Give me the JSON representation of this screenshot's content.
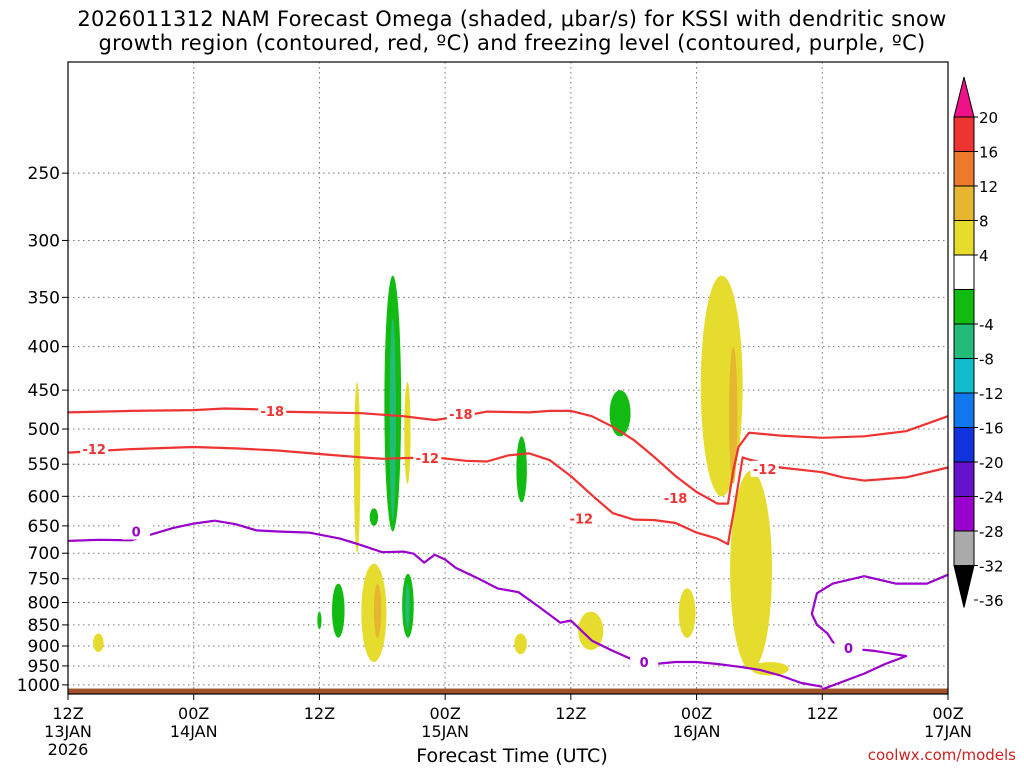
{
  "title_line1": "2026011312 NAM Forecast Omega (shaded, μbar/s) for KSSI with dendritic snow",
  "title_line2": "growth region (contoured, red, ºC) and freezing level (contoured, purple, ºC)",
  "credit": "coolwx.com/models",
  "colors": {
    "red_contour": "#ee3333",
    "purple_contour": "#9900cc",
    "ground": "#a0522d"
  },
  "chart_data": {
    "type": "heatmap",
    "title": "2026011312 NAM Forecast Omega (shaded, μbar/s) for KSSI with dendritic snow growth region (contoured, red, ºC) and freezing level (contoured, purple, ºC)",
    "xlabel": "Forecast Time (UTC)",
    "ylabel": "",
    "x_range_hours": [
      0,
      84
    ],
    "y_axis": {
      "scale": "log-pressure",
      "units": "hPa",
      "range": [
        1025,
        185
      ],
      "ticks": [
        250,
        300,
        350,
        400,
        450,
        500,
        550,
        600,
        650,
        700,
        750,
        800,
        850,
        900,
        950,
        1000
      ]
    },
    "x_ticks": [
      {
        "h": 0,
        "line1": "12Z",
        "line2": "13JAN",
        "line3": "2026"
      },
      {
        "h": 12,
        "line1": "00Z",
        "line2": "14JAN",
        "line3": ""
      },
      {
        "h": 24,
        "line1": "12Z",
        "line2": "",
        "line3": ""
      },
      {
        "h": 36,
        "line1": "00Z",
        "line2": "15JAN",
        "line3": ""
      },
      {
        "h": 48,
        "line1": "12Z",
        "line2": "",
        "line3": ""
      },
      {
        "h": 60,
        "line1": "00Z",
        "line2": "16JAN",
        "line3": ""
      },
      {
        "h": 72,
        "line1": "12Z",
        "line2": "",
        "line3": ""
      },
      {
        "h": 84,
        "line1": "00Z",
        "line2": "17JAN",
        "line3": ""
      }
    ],
    "colorbar": {
      "labels": [
        "20",
        "16",
        "12",
        "8",
        "4",
        "-4",
        "-8",
        "-12",
        "-16",
        "-20",
        "-24",
        "-28",
        "-32",
        "-36"
      ],
      "bins": [
        {
          "v": 18,
          "color": "#ee3333"
        },
        {
          "v": 14,
          "color": "#ec7a2a"
        },
        {
          "v": 10,
          "color": "#e6b630"
        },
        {
          "v": 6,
          "color": "#e5dc2e"
        },
        {
          "v": 0,
          "color": "#ffffff"
        },
        {
          "v": -6,
          "color": "#11bb11"
        },
        {
          "v": -10,
          "color": "#22bb77"
        },
        {
          "v": -14,
          "color": "#11bbcc"
        },
        {
          "v": -18,
          "color": "#1177ee"
        },
        {
          "v": -22,
          "color": "#1133dd"
        },
        {
          "v": -26,
          "color": "#6611cc"
        },
        {
          "v": -30,
          "color": "#9900cc"
        },
        {
          "v": -34,
          "color": "#aaaaaa"
        }
      ],
      "top_arrow_color": "#ee1188",
      "bottom_arrow_color": "#000000"
    },
    "contours": [
      {
        "name": "-18",
        "color": "#ee3333",
        "label": "-18",
        "pts": [
          [
            0,
            478
          ],
          [
            6,
            476
          ],
          [
            12,
            475
          ],
          [
            15,
            473
          ],
          [
            18,
            474
          ],
          [
            20,
            477
          ],
          [
            24,
            478
          ],
          [
            28,
            479
          ],
          [
            32,
            483
          ],
          [
            35,
            488
          ],
          [
            36.5,
            485
          ],
          [
            38,
            482
          ],
          [
            40,
            477
          ],
          [
            44,
            478
          ],
          [
            46,
            476
          ],
          [
            48,
            476
          ],
          [
            50,
            483
          ],
          [
            52,
            497
          ],
          [
            54,
            515
          ],
          [
            56,
            540
          ],
          [
            58,
            568
          ],
          [
            60,
            593
          ],
          [
            62,
            612
          ],
          [
            63,
            612
          ],
          [
            63.5,
            560
          ],
          [
            64,
            525
          ],
          [
            65,
            505
          ],
          [
            68,
            509
          ],
          [
            72,
            512
          ],
          [
            76,
            510
          ],
          [
            80,
            503
          ],
          [
            84,
            483
          ]
        ],
        "labels": [
          [
            19.5,
            476
          ],
          [
            37.5,
            480
          ],
          [
            58,
            603
          ]
        ]
      },
      {
        "name": "-12",
        "color": "#ee3333",
        "label": "-12",
        "pts": [
          [
            0,
            533
          ],
          [
            6,
            528
          ],
          [
            12,
            525
          ],
          [
            16,
            527
          ],
          [
            20,
            530
          ],
          [
            24,
            535
          ],
          [
            28,
            540
          ],
          [
            30,
            542
          ],
          [
            32,
            541
          ],
          [
            35,
            540
          ],
          [
            38,
            545
          ],
          [
            40,
            546
          ],
          [
            42,
            537
          ],
          [
            44,
            534
          ],
          [
            46,
            544
          ],
          [
            48,
            568
          ],
          [
            50,
            598
          ],
          [
            52,
            628
          ],
          [
            54,
            639
          ],
          [
            56,
            640
          ],
          [
            58,
            645
          ],
          [
            60,
            662
          ],
          [
            62,
            673
          ],
          [
            63,
            683
          ],
          [
            63.2,
            660
          ],
          [
            63.6,
            620
          ],
          [
            64,
            578
          ],
          [
            64.4,
            540
          ],
          [
            65,
            543
          ],
          [
            68,
            555
          ],
          [
            72,
            562
          ],
          [
            74,
            570
          ],
          [
            76,
            575
          ],
          [
            80,
            570
          ],
          [
            84,
            555
          ]
        ],
        "labels": [
          [
            2.5,
            528
          ],
          [
            34.3,
            541
          ],
          [
            49,
            637
          ],
          [
            66.5,
            557
          ]
        ]
      },
      {
        "name": "0",
        "color": "#9900cc",
        "label": "0",
        "pts": [
          [
            0,
            677
          ],
          [
            3,
            675
          ],
          [
            6,
            676
          ],
          [
            8,
            665
          ],
          [
            10,
            654
          ],
          [
            12,
            646
          ],
          [
            14,
            641
          ],
          [
            16,
            647
          ],
          [
            18,
            658
          ],
          [
            20,
            660
          ],
          [
            23,
            662
          ],
          [
            26,
            673
          ],
          [
            28,
            685
          ],
          [
            30,
            698
          ],
          [
            32,
            697
          ],
          [
            33,
            701
          ],
          [
            34,
            718
          ],
          [
            35,
            703
          ],
          [
            36,
            712
          ],
          [
            37,
            728
          ],
          [
            39,
            748
          ],
          [
            41,
            770
          ],
          [
            43,
            778
          ],
          [
            45,
            810
          ],
          [
            47,
            845
          ],
          [
            48,
            840
          ],
          [
            50,
            887
          ],
          [
            52,
            912
          ],
          [
            54,
            935
          ],
          [
            56,
            945
          ],
          [
            58,
            940
          ],
          [
            60,
            940
          ],
          [
            62,
            945
          ],
          [
            64,
            952
          ],
          [
            66,
            960
          ],
          [
            68,
            975
          ],
          [
            70,
            995
          ],
          [
            72,
            1005
          ]
        ],
        "labels": [
          [
            6.5,
            660
          ],
          [
            55,
            940
          ]
        ]
      },
      {
        "name": "0b",
        "color": "#9900cc",
        "label": "",
        "pts": [
          [
            72,
            1012
          ],
          [
            76,
            970
          ],
          [
            78,
            945
          ],
          [
            80,
            925
          ],
          [
            77,
            912
          ],
          [
            74,
            905
          ],
          [
            73,
            890
          ],
          [
            72.5,
            870
          ],
          [
            71.5,
            850
          ],
          [
            71,
            825
          ],
          [
            71.5,
            780
          ],
          [
            73,
            760
          ],
          [
            76,
            745
          ],
          [
            79,
            760
          ],
          [
            82,
            760
          ],
          [
            84,
            742
          ]
        ],
        "labels": [
          [
            74.5,
            905
          ]
        ]
      }
    ],
    "omega_areas": [
      {
        "v": -6,
        "hours": [
          28.8,
          29.6
        ],
        "p_top": 620,
        "p_bottom": 650
      },
      {
        "v": -6,
        "hours": [
          30.2,
          31.8
        ],
        "p_top": 330,
        "p_bottom": 660
      },
      {
        "v": -10,
        "hours": [
          30.7,
          31.3
        ],
        "p_top": 370,
        "p_bottom": 640
      },
      {
        "v": -6,
        "hours": [
          25.2,
          26.4
        ],
        "p_top": 760,
        "p_bottom": 880
      },
      {
        "v": -6,
        "hours": [
          23.8,
          24.2
        ],
        "p_top": 820,
        "p_bottom": 860
      },
      {
        "v": -6,
        "hours": [
          31.9,
          33.0
        ],
        "p_top": 740,
        "p_bottom": 880
      },
      {
        "v": -10,
        "hours": [
          32.2,
          32.6
        ],
        "p_top": 760,
        "p_bottom": 860
      },
      {
        "v": -6,
        "hours": [
          42.8,
          43.8
        ],
        "p_top": 510,
        "p_bottom": 610
      },
      {
        "v": -6,
        "hours": [
          51.7,
          53.7
        ],
        "p_top": 450,
        "p_bottom": 510
      },
      {
        "v": 6,
        "hours": [
          27.3,
          27.9
        ],
        "p_top": 440,
        "p_bottom": 700
      },
      {
        "v": 6,
        "hours": [
          32.1,
          32.7
        ],
        "p_top": 440,
        "p_bottom": 580
      },
      {
        "v": 6,
        "hours": [
          28.0,
          30.4
        ],
        "p_top": 720,
        "p_bottom": 940
      },
      {
        "v": 10,
        "hours": [
          29.2,
          29.9
        ],
        "p_top": 760,
        "p_bottom": 880
      },
      {
        "v": 6,
        "hours": [
          2.4,
          3.4
        ],
        "p_top": 870,
        "p_bottom": 915
      },
      {
        "v": 6,
        "hours": [
          42.6,
          43.8
        ],
        "p_top": 870,
        "p_bottom": 920
      },
      {
        "v": 6,
        "hours": [
          48.7,
          51.1
        ],
        "p_top": 820,
        "p_bottom": 910
      },
      {
        "v": 6,
        "hours": [
          58.3,
          59.9
        ],
        "p_top": 770,
        "p_bottom": 880
      },
      {
        "v": 6,
        "hours": [
          60.4,
          64.4
        ],
        "p_top": 330,
        "p_bottom": 600
      },
      {
        "v": 10,
        "hours": [
          63.1,
          63.9
        ],
        "p_top": 400,
        "p_bottom": 580
      },
      {
        "v": 6,
        "hours": [
          63.2,
          67.2
        ],
        "p_top": 560,
        "p_bottom": 960
      },
      {
        "v": 6,
        "hours": [
          65.2,
          68.8
        ],
        "p_top": 940,
        "p_bottom": 975
      }
    ],
    "ground": {
      "p_top": 1025,
      "p_bottom": 1010
    }
  }
}
